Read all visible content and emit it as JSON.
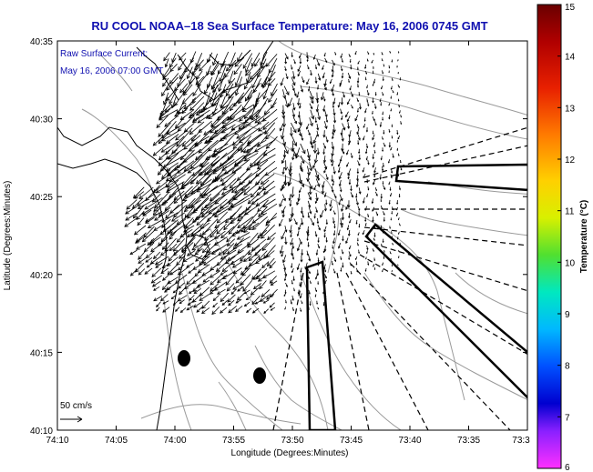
{
  "title": "RU COOL  NOAA–18  Sea Surface Temperature:  May 16, 2006 0745 GMT",
  "annotation": {
    "line1": "Raw Surface Current:",
    "line2": "May 16, 2006 07:00 GMT"
  },
  "axes": {
    "xlabel": "Longitude (Degrees:Minutes)",
    "ylabel": "Latitude (Degrees:Minutes)",
    "xticks": [
      "74:10",
      "74:05",
      "74:00",
      "73:55",
      "73:50",
      "73:45",
      "73:40",
      "73:35",
      "73:3"
    ],
    "yticks": [
      "40:35",
      "40:30",
      "40:25",
      "40:20",
      "40:15",
      "40:10"
    ]
  },
  "scale": {
    "label": "50 cm/s"
  },
  "colorbar": {
    "label": "Temperature (°C)",
    "ticks": [
      "15",
      "14",
      "13",
      "12",
      "11",
      "10",
      "9",
      "8",
      "7",
      "6"
    ],
    "range": [
      6,
      15
    ]
  },
  "colors": {
    "title": "#1010b0",
    "contour": "#9a9a9a",
    "coast": "#000000"
  }
}
